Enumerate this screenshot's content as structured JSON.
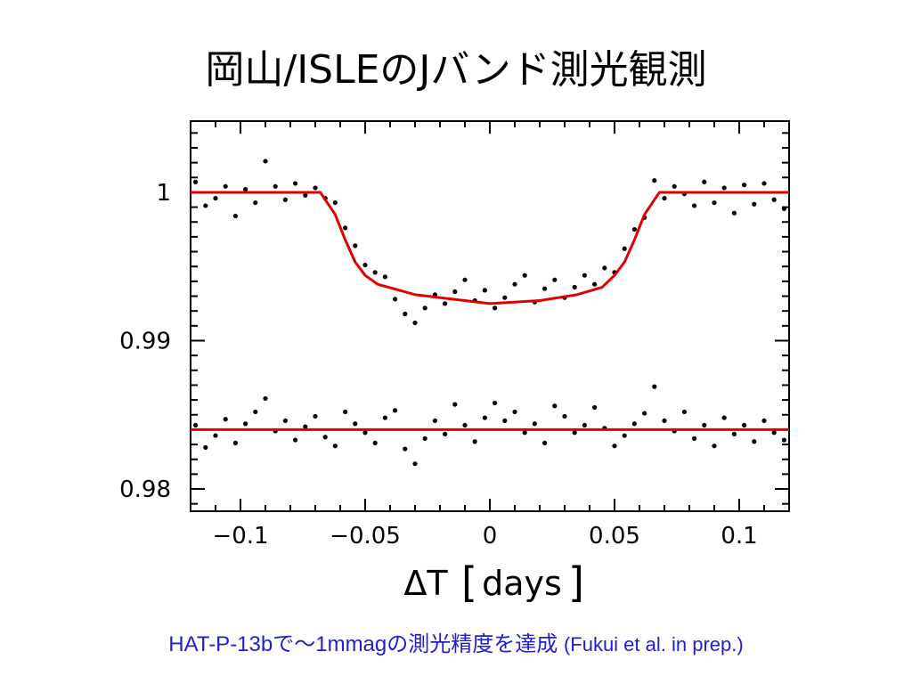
{
  "slide": {
    "title": "岡山/ISLEのJバンド測光観測",
    "caption_main": "HAT-P-13bで～1mmagの測光精度を達成",
    "caption_ref": "(Fukui et al. in prep.)"
  },
  "chart_data": {
    "type": "scatter",
    "title": "",
    "xlabel": "ΔT [days]",
    "xlabel_symbol": "ΔT",
    "xlabel_unit": "days",
    "ylabel": "",
    "xlim": [
      -0.12,
      0.12
    ],
    "ylim": [
      0.9785,
      1.0048
    ],
    "x_ticks": [
      -0.1,
      -0.05,
      0,
      0.05,
      0.1
    ],
    "x_tick_labels": [
      "−0.1",
      "−0.05",
      "0",
      "0.05",
      "0.1"
    ],
    "y_ticks": [
      0.98,
      0.99,
      1
    ],
    "y_tick_labels": [
      "0.98",
      "0.99",
      "1"
    ],
    "grid": false,
    "colors": {
      "points": "#000000",
      "model": "#e00000",
      "axes": "#000000"
    },
    "series": [
      {
        "kind": "points",
        "x": [
          -0.118,
          -0.114,
          -0.11,
          -0.106,
          -0.102,
          -0.098,
          -0.094,
          -0.09,
          -0.086,
          -0.082,
          -0.078,
          -0.074,
          -0.07,
          -0.066,
          -0.062,
          -0.058,
          -0.054,
          -0.05,
          -0.046,
          -0.042,
          -0.038,
          -0.034,
          -0.03,
          -0.026,
          -0.022,
          -0.018,
          -0.014,
          -0.01,
          -0.006,
          -0.002,
          0.002,
          0.006,
          0.01,
          0.014,
          0.018,
          0.022,
          0.026,
          0.03,
          0.034,
          0.038,
          0.042,
          0.046,
          0.05,
          0.054,
          0.058,
          0.062,
          0.066,
          0.07,
          0.074,
          0.078,
          0.082,
          0.086,
          0.09,
          0.094,
          0.098,
          0.102,
          0.106,
          0.11,
          0.114,
          0.118
        ],
        "y": [
          1.0007,
          0.9991,
          0.9996,
          1.0004,
          0.9984,
          1.0002,
          0.9993,
          1.0021,
          1.0004,
          0.9995,
          1.0006,
          0.9998,
          1.0003,
          0.9996,
          0.9993,
          0.9976,
          0.9964,
          0.9951,
          0.9946,
          0.9943,
          0.9928,
          0.9918,
          0.9912,
          0.9922,
          0.9931,
          0.9925,
          0.9933,
          0.9941,
          0.9927,
          0.9934,
          0.9922,
          0.9929,
          0.9938,
          0.9944,
          0.9926,
          0.9935,
          0.9941,
          0.9929,
          0.9936,
          0.9944,
          0.9938,
          0.9949,
          0.9946,
          0.9962,
          0.9975,
          0.9983,
          1.0008,
          0.9996,
          1.0004,
          0.9999,
          0.9991,
          1.0007,
          0.9993,
          1.0003,
          0.9986,
          1.0005,
          0.9992,
          1.0006,
          0.9995,
          0.9989
        ]
      },
      {
        "kind": "model",
        "x": [
          -0.12,
          -0.068,
          -0.062,
          -0.058,
          -0.054,
          -0.05,
          -0.045,
          -0.03,
          -0.01,
          0,
          0.02,
          0.035,
          0.045,
          0.05,
          0.054,
          0.058,
          0.062,
          0.068,
          0.12
        ],
        "y": [
          1.0,
          1.0,
          0.9985,
          0.9968,
          0.9953,
          0.9944,
          0.9938,
          0.9931,
          0.9927,
          0.9925,
          0.9927,
          0.9931,
          0.9936,
          0.9944,
          0.9953,
          0.9968,
          0.9985,
          1.0,
          1.0
        ]
      },
      {
        "kind": "points",
        "x": [
          -0.118,
          -0.114,
          -0.11,
          -0.106,
          -0.102,
          -0.098,
          -0.094,
          -0.09,
          -0.086,
          -0.082,
          -0.078,
          -0.074,
          -0.07,
          -0.066,
          -0.062,
          -0.058,
          -0.054,
          -0.05,
          -0.046,
          -0.042,
          -0.038,
          -0.034,
          -0.03,
          -0.026,
          -0.022,
          -0.018,
          -0.014,
          -0.01,
          -0.006,
          -0.002,
          0.002,
          0.006,
          0.01,
          0.014,
          0.018,
          0.022,
          0.026,
          0.03,
          0.034,
          0.038,
          0.042,
          0.046,
          0.05,
          0.054,
          0.058,
          0.062,
          0.066,
          0.07,
          0.074,
          0.078,
          0.082,
          0.086,
          0.09,
          0.094,
          0.098,
          0.102,
          0.106,
          0.11,
          0.114,
          0.118
        ],
        "y": [
          0.9843,
          0.9828,
          0.9836,
          0.9847,
          0.9831,
          0.9844,
          0.9852,
          0.9861,
          0.9839,
          0.9846,
          0.9833,
          0.9842,
          0.9849,
          0.9835,
          0.9829,
          0.9852,
          0.9844,
          0.9838,
          0.9831,
          0.9848,
          0.9853,
          0.9827,
          0.9817,
          0.9834,
          0.9846,
          0.9837,
          0.9857,
          0.9843,
          0.9832,
          0.9848,
          0.9858,
          0.9846,
          0.9852,
          0.9838,
          0.9844,
          0.9831,
          0.9856,
          0.9849,
          0.9838,
          0.9843,
          0.9855,
          0.9841,
          0.9829,
          0.9836,
          0.9844,
          0.9851,
          0.9869,
          0.9846,
          0.9839,
          0.9852,
          0.9834,
          0.9843,
          0.9829,
          0.9848,
          0.9837,
          0.9843,
          0.9832,
          0.9846,
          0.9838,
          0.9833
        ]
      },
      {
        "kind": "model",
        "x": [
          -0.12,
          0.12
        ],
        "y": [
          0.984,
          0.984
        ]
      }
    ]
  }
}
